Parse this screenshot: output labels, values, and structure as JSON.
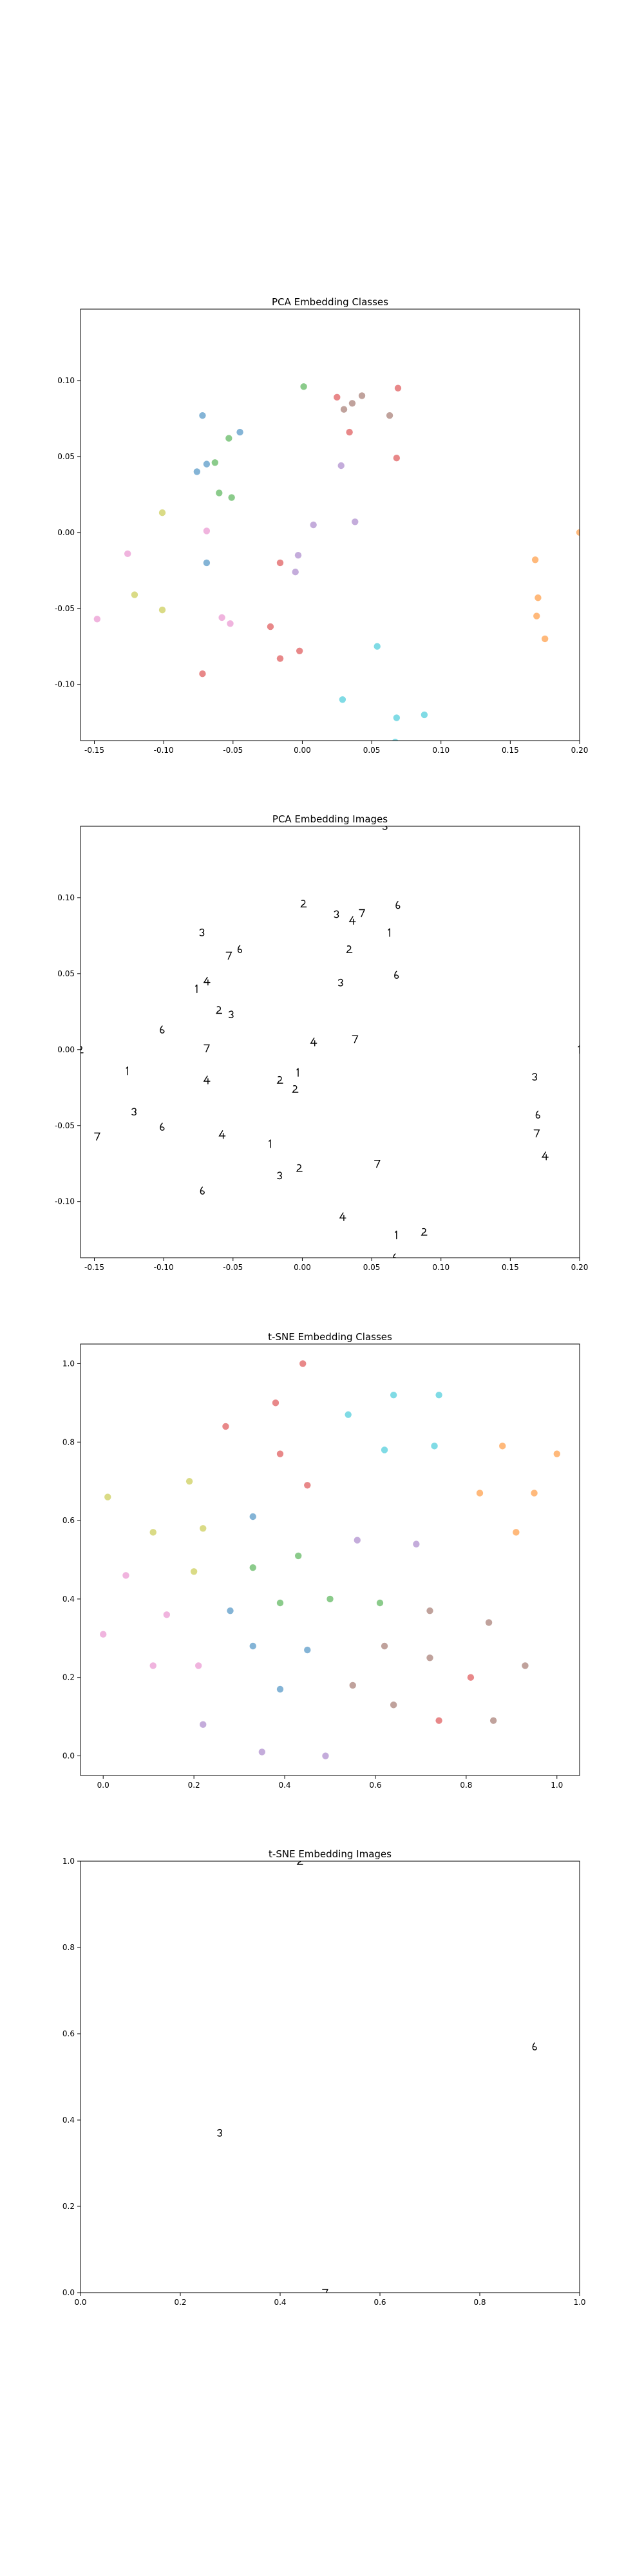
{
  "chart_data": [
    {
      "type": "scatter",
      "title": "PCA Embedding Classes",
      "xlabel": "",
      "ylabel": "",
      "xlim": [
        -0.16,
        0.2
      ],
      "ylim": [
        -0.137,
        0.147
      ],
      "xticks": [
        "-0.15",
        "-0.10",
        "-0.05",
        "0.00",
        "0.05",
        "0.10",
        "0.15",
        "0.20"
      ],
      "yticks": [
        "-0.10",
        "-0.05",
        "0.00",
        "0.05",
        "0.10"
      ],
      "xtick_values": [
        -0.15,
        -0.1,
        -0.05,
        0.0,
        0.05,
        0.1,
        0.15,
        0.2
      ],
      "ytick_values": [
        -0.1,
        -0.05,
        0.0,
        0.05,
        0.1
      ],
      "grid": false,
      "marker": "circle",
      "points": [
        {
          "x": 0.001,
          "y": 0.096,
          "color": "#2ca02c"
        },
        {
          "x": 0.025,
          "y": 0.089,
          "color": "#d62728"
        },
        {
          "x": 0.069,
          "y": 0.095,
          "color": "#d62728"
        },
        {
          "x": 0.043,
          "y": 0.09,
          "color": "#8c564b"
        },
        {
          "x": 0.036,
          "y": 0.085,
          "color": "#8c564b"
        },
        {
          "x": 0.03,
          "y": 0.081,
          "color": "#8c564b"
        },
        {
          "x": 0.063,
          "y": 0.077,
          "color": "#8c564b"
        },
        {
          "x": 0.034,
          "y": 0.066,
          "color": "#d62728"
        },
        {
          "x": 0.028,
          "y": 0.044,
          "color": "#9467bd"
        },
        {
          "x": 0.068,
          "y": 0.049,
          "color": "#d62728"
        },
        {
          "x": 0.038,
          "y": 0.007,
          "color": "#9467bd"
        },
        {
          "x": 0.008,
          "y": 0.005,
          "color": "#9467bd"
        },
        {
          "x": -0.003,
          "y": -0.015,
          "color": "#9467bd"
        },
        {
          "x": -0.005,
          "y": -0.026,
          "color": "#9467bd"
        },
        {
          "x": -0.072,
          "y": 0.077,
          "color": "#1f77b4"
        },
        {
          "x": -0.045,
          "y": 0.066,
          "color": "#1f77b4"
        },
        {
          "x": -0.053,
          "y": 0.062,
          "color": "#2ca02c"
        },
        {
          "x": -0.063,
          "y": 0.046,
          "color": "#2ca02c"
        },
        {
          "x": -0.069,
          "y": 0.045,
          "color": "#1f77b4"
        },
        {
          "x": -0.076,
          "y": 0.04,
          "color": "#1f77b4"
        },
        {
          "x": -0.06,
          "y": 0.026,
          "color": "#2ca02c"
        },
        {
          "x": -0.051,
          "y": 0.023,
          "color": "#2ca02c"
        },
        {
          "x": -0.101,
          "y": 0.013,
          "color": "#bcbd22"
        },
        {
          "x": -0.069,
          "y": 0.001,
          "color": "#e377c2"
        },
        {
          "x": -0.069,
          "y": -0.02,
          "color": "#1f77b4"
        },
        {
          "x": -0.126,
          "y": -0.014,
          "color": "#e377c2"
        },
        {
          "x": -0.016,
          "y": -0.02,
          "color": "#d62728"
        },
        {
          "x": -0.121,
          "y": -0.041,
          "color": "#bcbd22"
        },
        {
          "x": -0.101,
          "y": -0.051,
          "color": "#bcbd22"
        },
        {
          "x": -0.148,
          "y": -0.057,
          "color": "#e377c2"
        },
        {
          "x": -0.058,
          "y": -0.056,
          "color": "#e377c2"
        },
        {
          "x": -0.052,
          "y": -0.06,
          "color": "#e377c2"
        },
        {
          "x": -0.023,
          "y": -0.062,
          "color": "#d62728"
        },
        {
          "x": -0.002,
          "y": -0.078,
          "color": "#d62728"
        },
        {
          "x": -0.016,
          "y": -0.083,
          "color": "#d62728"
        },
        {
          "x": -0.072,
          "y": -0.093,
          "color": "#d62728"
        },
        {
          "x": 0.054,
          "y": -0.075,
          "color": "#17becf"
        },
        {
          "x": 0.029,
          "y": -0.11,
          "color": "#17becf"
        },
        {
          "x": 0.068,
          "y": -0.122,
          "color": "#17becf"
        },
        {
          "x": 0.088,
          "y": -0.12,
          "color": "#17becf"
        },
        {
          "x": 0.067,
          "y": -0.138,
          "color": "#17becf"
        },
        {
          "x": 0.168,
          "y": -0.018,
          "color": "#ff7f0e"
        },
        {
          "x": 0.17,
          "y": -0.043,
          "color": "#ff7f0e"
        },
        {
          "x": 0.169,
          "y": -0.055,
          "color": "#ff7f0e"
        },
        {
          "x": 0.175,
          "y": -0.07,
          "color": "#ff7f0e"
        },
        {
          "x": 0.2,
          "y": 0.0,
          "color": "#ff7f0e"
        }
      ]
    },
    {
      "type": "scatter",
      "title": "PCA Embedding Images",
      "xlabel": "",
      "ylabel": "",
      "xlim": [
        -0.16,
        0.2
      ],
      "ylim": [
        -0.137,
        0.147
      ],
      "xticks": [
        "-0.15",
        "-0.10",
        "-0.05",
        "0.00",
        "0.05",
        "0.10",
        "0.15",
        "0.20"
      ],
      "yticks": [
        "-0.10",
        "-0.05",
        "0.00",
        "0.05",
        "0.10"
      ],
      "xtick_values": [
        -0.15,
        -0.1,
        -0.05,
        0.0,
        0.05,
        0.1,
        0.15,
        0.2
      ],
      "ytick_values": [
        -0.1,
        -0.05,
        0.0,
        0.05,
        0.1
      ],
      "grid": false,
      "marker": "digit-image",
      "points": [
        {
          "x": 0.001,
          "y": 0.096
        },
        {
          "x": 0.025,
          "y": 0.089
        },
        {
          "x": 0.069,
          "y": 0.095
        },
        {
          "x": 0.043,
          "y": 0.09
        },
        {
          "x": 0.036,
          "y": 0.085
        },
        {
          "x": 0.063,
          "y": 0.077
        },
        {
          "x": 0.034,
          "y": 0.066
        },
        {
          "x": 0.028,
          "y": 0.044
        },
        {
          "x": 0.068,
          "y": 0.049
        },
        {
          "x": 0.038,
          "y": 0.007
        },
        {
          "x": 0.008,
          "y": 0.005
        },
        {
          "x": -0.003,
          "y": -0.015
        },
        {
          "x": -0.005,
          "y": -0.026
        },
        {
          "x": -0.072,
          "y": 0.077
        },
        {
          "x": -0.045,
          "y": 0.066
        },
        {
          "x": -0.053,
          "y": 0.062
        },
        {
          "x": -0.069,
          "y": 0.045
        },
        {
          "x": -0.076,
          "y": 0.04
        },
        {
          "x": -0.06,
          "y": 0.026
        },
        {
          "x": -0.051,
          "y": 0.023
        },
        {
          "x": -0.101,
          "y": 0.013
        },
        {
          "x": -0.069,
          "y": 0.001
        },
        {
          "x": -0.069,
          "y": -0.02
        },
        {
          "x": -0.126,
          "y": -0.014
        },
        {
          "x": -0.016,
          "y": -0.02
        },
        {
          "x": -0.121,
          "y": -0.041
        },
        {
          "x": -0.101,
          "y": -0.051
        },
        {
          "x": -0.148,
          "y": -0.057
        },
        {
          "x": -0.058,
          "y": -0.056
        },
        {
          "x": -0.023,
          "y": -0.062
        },
        {
          "x": -0.002,
          "y": -0.078
        },
        {
          "x": -0.016,
          "y": -0.083
        },
        {
          "x": -0.072,
          "y": -0.093
        },
        {
          "x": 0.054,
          "y": -0.075
        },
        {
          "x": 0.029,
          "y": -0.11
        },
        {
          "x": 0.068,
          "y": -0.122
        },
        {
          "x": 0.088,
          "y": -0.12
        },
        {
          "x": 0.168,
          "y": -0.018
        },
        {
          "x": 0.17,
          "y": -0.043
        },
        {
          "x": 0.169,
          "y": -0.055
        },
        {
          "x": 0.175,
          "y": -0.07
        },
        {
          "x": 0.2,
          "y": 0.0
        },
        {
          "x": -0.16,
          "y": 0.0
        },
        {
          "x": 0.06,
          "y": 0.147
        },
        {
          "x": 0.067,
          "y": -0.137
        }
      ]
    },
    {
      "type": "scatter",
      "title": "t-SNE Embedding Classes",
      "xlabel": "",
      "ylabel": "",
      "xlim": [
        -0.05,
        1.05
      ],
      "ylim": [
        -0.05,
        1.05
      ],
      "xticks": [
        "0.0",
        "0.2",
        "0.4",
        "0.6",
        "0.8",
        "1.0"
      ],
      "yticks": [
        "0.0",
        "0.2",
        "0.4",
        "0.6",
        "0.8",
        "1.0"
      ],
      "xtick_values": [
        0.0,
        0.2,
        0.4,
        0.6,
        0.8,
        1.0
      ],
      "ytick_values": [
        0.0,
        0.2,
        0.4,
        0.6,
        0.8,
        1.0
      ],
      "grid": false,
      "marker": "circle",
      "points": [
        {
          "x": 0.44,
          "y": 1.0,
          "color": "#d62728"
        },
        {
          "x": 0.38,
          "y": 0.9,
          "color": "#d62728"
        },
        {
          "x": 0.27,
          "y": 0.84,
          "color": "#d62728"
        },
        {
          "x": 0.39,
          "y": 0.77,
          "color": "#d62728"
        },
        {
          "x": 0.45,
          "y": 0.69,
          "color": "#d62728"
        },
        {
          "x": 0.54,
          "y": 0.87,
          "color": "#17becf"
        },
        {
          "x": 0.64,
          "y": 0.92,
          "color": "#17becf"
        },
        {
          "x": 0.74,
          "y": 0.92,
          "color": "#17becf"
        },
        {
          "x": 0.62,
          "y": 0.78,
          "color": "#17becf"
        },
        {
          "x": 0.73,
          "y": 0.79,
          "color": "#17becf"
        },
        {
          "x": 0.88,
          "y": 0.79,
          "color": "#ff7f0e"
        },
        {
          "x": 1.0,
          "y": 0.77,
          "color": "#ff7f0e"
        },
        {
          "x": 0.83,
          "y": 0.67,
          "color": "#ff7f0e"
        },
        {
          "x": 0.95,
          "y": 0.67,
          "color": "#ff7f0e"
        },
        {
          "x": 0.91,
          "y": 0.57,
          "color": "#ff7f0e"
        },
        {
          "x": 0.01,
          "y": 0.66,
          "color": "#bcbd22"
        },
        {
          "x": 0.19,
          "y": 0.7,
          "color": "#bcbd22"
        },
        {
          "x": 0.11,
          "y": 0.57,
          "color": "#bcbd22"
        },
        {
          "x": 0.22,
          "y": 0.58,
          "color": "#bcbd22"
        },
        {
          "x": 0.2,
          "y": 0.47,
          "color": "#bcbd22"
        },
        {
          "x": 0.33,
          "y": 0.61,
          "color": "#1f77b4"
        },
        {
          "x": 0.28,
          "y": 0.37,
          "color": "#1f77b4"
        },
        {
          "x": 0.33,
          "y": 0.28,
          "color": "#1f77b4"
        },
        {
          "x": 0.45,
          "y": 0.27,
          "color": "#1f77b4"
        },
        {
          "x": 0.39,
          "y": 0.17,
          "color": "#1f77b4"
        },
        {
          "x": 0.33,
          "y": 0.48,
          "color": "#2ca02c"
        },
        {
          "x": 0.43,
          "y": 0.51,
          "color": "#2ca02c"
        },
        {
          "x": 0.39,
          "y": 0.39,
          "color": "#2ca02c"
        },
        {
          "x": 0.5,
          "y": 0.4,
          "color": "#2ca02c"
        },
        {
          "x": 0.61,
          "y": 0.39,
          "color": "#2ca02c"
        },
        {
          "x": 0.56,
          "y": 0.55,
          "color": "#9467bd"
        },
        {
          "x": 0.69,
          "y": 0.54,
          "color": "#9467bd"
        },
        {
          "x": 0.22,
          "y": 0.08,
          "color": "#9467bd"
        },
        {
          "x": 0.35,
          "y": 0.01,
          "color": "#9467bd"
        },
        {
          "x": 0.49,
          "y": 0.0,
          "color": "#9467bd"
        },
        {
          "x": 0.05,
          "y": 0.46,
          "color": "#e377c2"
        },
        {
          "x": 0.0,
          "y": 0.31,
          "color": "#e377c2"
        },
        {
          "x": 0.14,
          "y": 0.36,
          "color": "#e377c2"
        },
        {
          "x": 0.11,
          "y": 0.23,
          "color": "#e377c2"
        },
        {
          "x": 0.21,
          "y": 0.23,
          "color": "#e377c2"
        },
        {
          "x": 0.72,
          "y": 0.37,
          "color": "#8c564b"
        },
        {
          "x": 0.85,
          "y": 0.34,
          "color": "#8c564b"
        },
        {
          "x": 0.62,
          "y": 0.28,
          "color": "#8c564b"
        },
        {
          "x": 0.72,
          "y": 0.25,
          "color": "#8c564b"
        },
        {
          "x": 0.93,
          "y": 0.23,
          "color": "#8c564b"
        },
        {
          "x": 0.55,
          "y": 0.18,
          "color": "#8c564b"
        },
        {
          "x": 0.64,
          "y": 0.13,
          "color": "#8c564b"
        },
        {
          "x": 0.81,
          "y": 0.2,
          "color": "#d62728"
        },
        {
          "x": 0.74,
          "y": 0.09,
          "color": "#d62728"
        },
        {
          "x": 0.86,
          "y": 0.09,
          "color": "#8c564b"
        }
      ]
    },
    {
      "type": "scatter",
      "title": "t-SNE Embedding Images",
      "xlabel": "",
      "ylabel": "",
      "xlim": [
        0.0,
        1.0
      ],
      "ylim": [
        0.0,
        1.0
      ],
      "xticks": [
        "0.0",
        "0.2",
        "0.4",
        "0.6",
        "0.8",
        "1.0"
      ],
      "yticks": [
        "0.0",
        "0.2",
        "0.4",
        "0.6",
        "0.8",
        "1.0"
      ],
      "xtick_values": [
        0.0,
        0.2,
        0.4,
        0.6,
        0.8,
        1.0
      ],
      "ytick_values": [
        0.0,
        0.2,
        0.4,
        0.6,
        0.8,
        1.0
      ],
      "grid": false,
      "marker": "digit-image",
      "points": [
        {
          "x": 0.44,
          "y": 1.0
        },
        {
          "x": 0.28,
          "y": 0.37
        },
        {
          "x": 0.91,
          "y": 0.57
        },
        {
          "x": 0.49,
          "y": 0.0
        }
      ]
    }
  ]
}
